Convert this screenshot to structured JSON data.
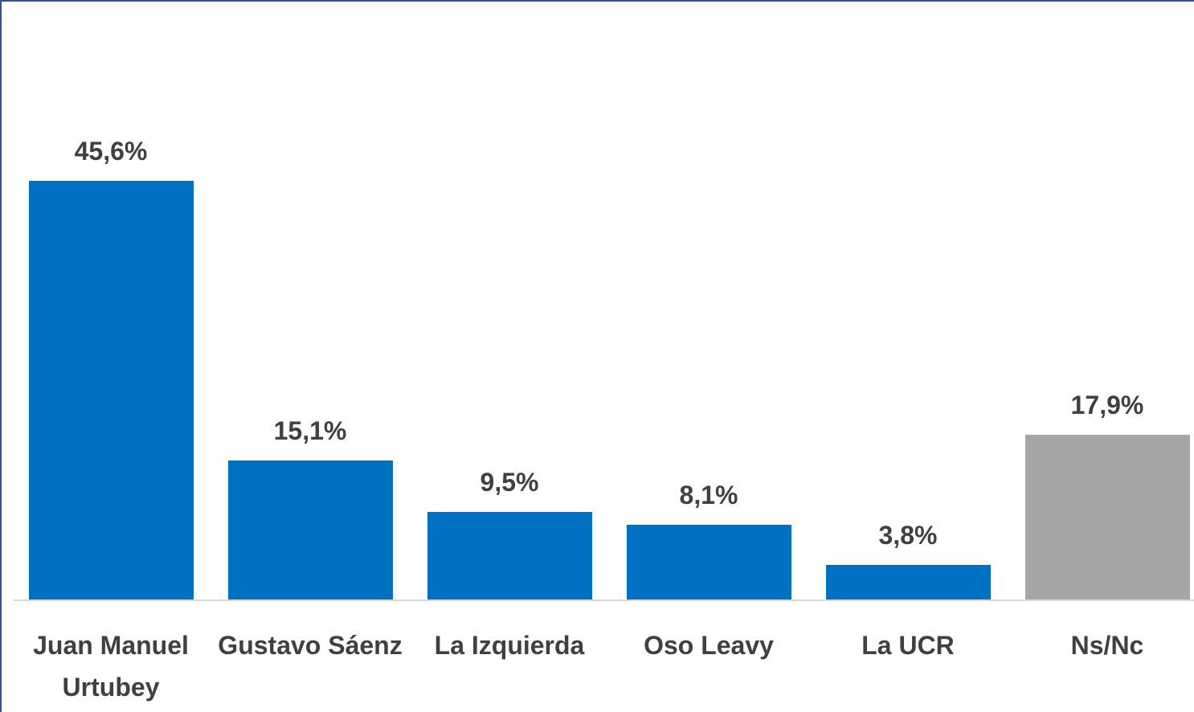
{
  "chart_data": {
    "type": "bar",
    "categories": [
      "Juan Manuel Urtubey",
      "Gustavo Sáenz",
      "La Izquierda",
      "Oso Leavy",
      "La UCR",
      "Ns/Nc"
    ],
    "values": [
      45.6,
      15.1,
      9.5,
      8.1,
      3.8,
      17.9
    ],
    "value_labels": [
      "45,6%",
      "15,1%",
      "9,5%",
      "8,1%",
      "3,8%",
      "17,9%"
    ],
    "colors": [
      "#0070c0",
      "#0070c0",
      "#0070c0",
      "#0070c0",
      "#0070c0",
      "#a6a6a6"
    ],
    "ylim": [
      0,
      60
    ]
  }
}
